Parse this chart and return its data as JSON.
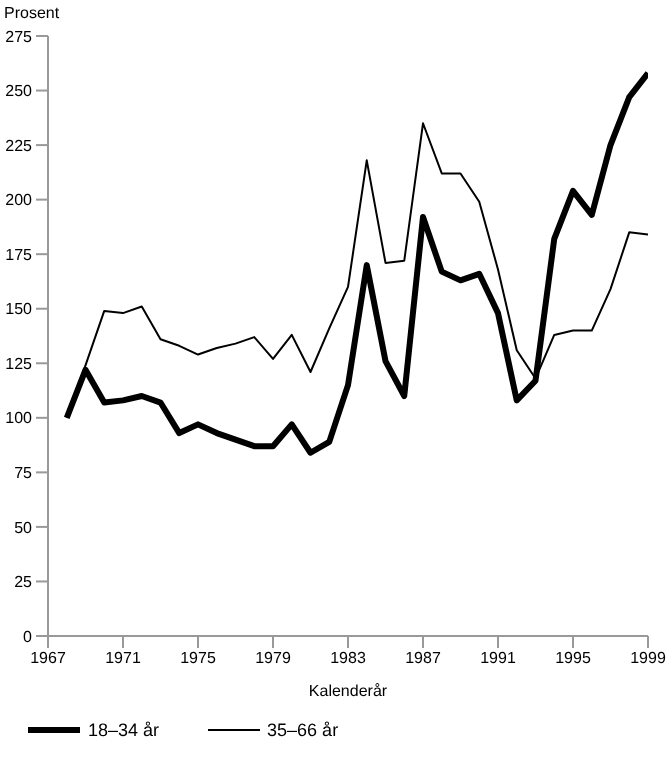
{
  "chart_data": {
    "type": "line",
    "ylabel": "Prosent",
    "xlabel": "Kalenderår",
    "x": [
      1968,
      1969,
      1970,
      1971,
      1972,
      1973,
      1974,
      1975,
      1976,
      1977,
      1978,
      1979,
      1980,
      1981,
      1982,
      1983,
      1984,
      1985,
      1986,
      1987,
      1988,
      1989,
      1990,
      1991,
      1992,
      1993,
      1994,
      1995,
      1996,
      1997,
      1998,
      1999
    ],
    "series": [
      {
        "name": "18–34 år",
        "color": "#000000",
        "values": [
          100,
          122,
          107,
          108,
          110,
          107,
          93,
          97,
          93,
          90,
          87,
          87,
          97,
          84,
          89,
          115,
          170,
          126,
          110,
          192,
          167,
          163,
          166,
          148,
          108,
          117,
          182,
          204,
          193,
          225,
          247,
          258
        ]
      },
      {
        "name": "35–66 år",
        "color": "#000000",
        "values": [
          100,
          124,
          149,
          148,
          151,
          136,
          133,
          129,
          132,
          134,
          137,
          127,
          138,
          121,
          141,
          160,
          218,
          171,
          172,
          235,
          212,
          212,
          199,
          168,
          131,
          118,
          138,
          140,
          140,
          159,
          185,
          184
        ]
      }
    ],
    "xlim": [
      1967,
      1999
    ],
    "xticks": [
      1967,
      1971,
      1975,
      1979,
      1983,
      1987,
      1991,
      1995,
      1999
    ],
    "ylim": [
      0,
      275
    ],
    "yticks": [
      0,
      25,
      50,
      75,
      100,
      125,
      150,
      175,
      200,
      225,
      250,
      275
    ],
    "grid": false,
    "legend": "bottom left",
    "marker": "none",
    "line_style": "solid"
  }
}
